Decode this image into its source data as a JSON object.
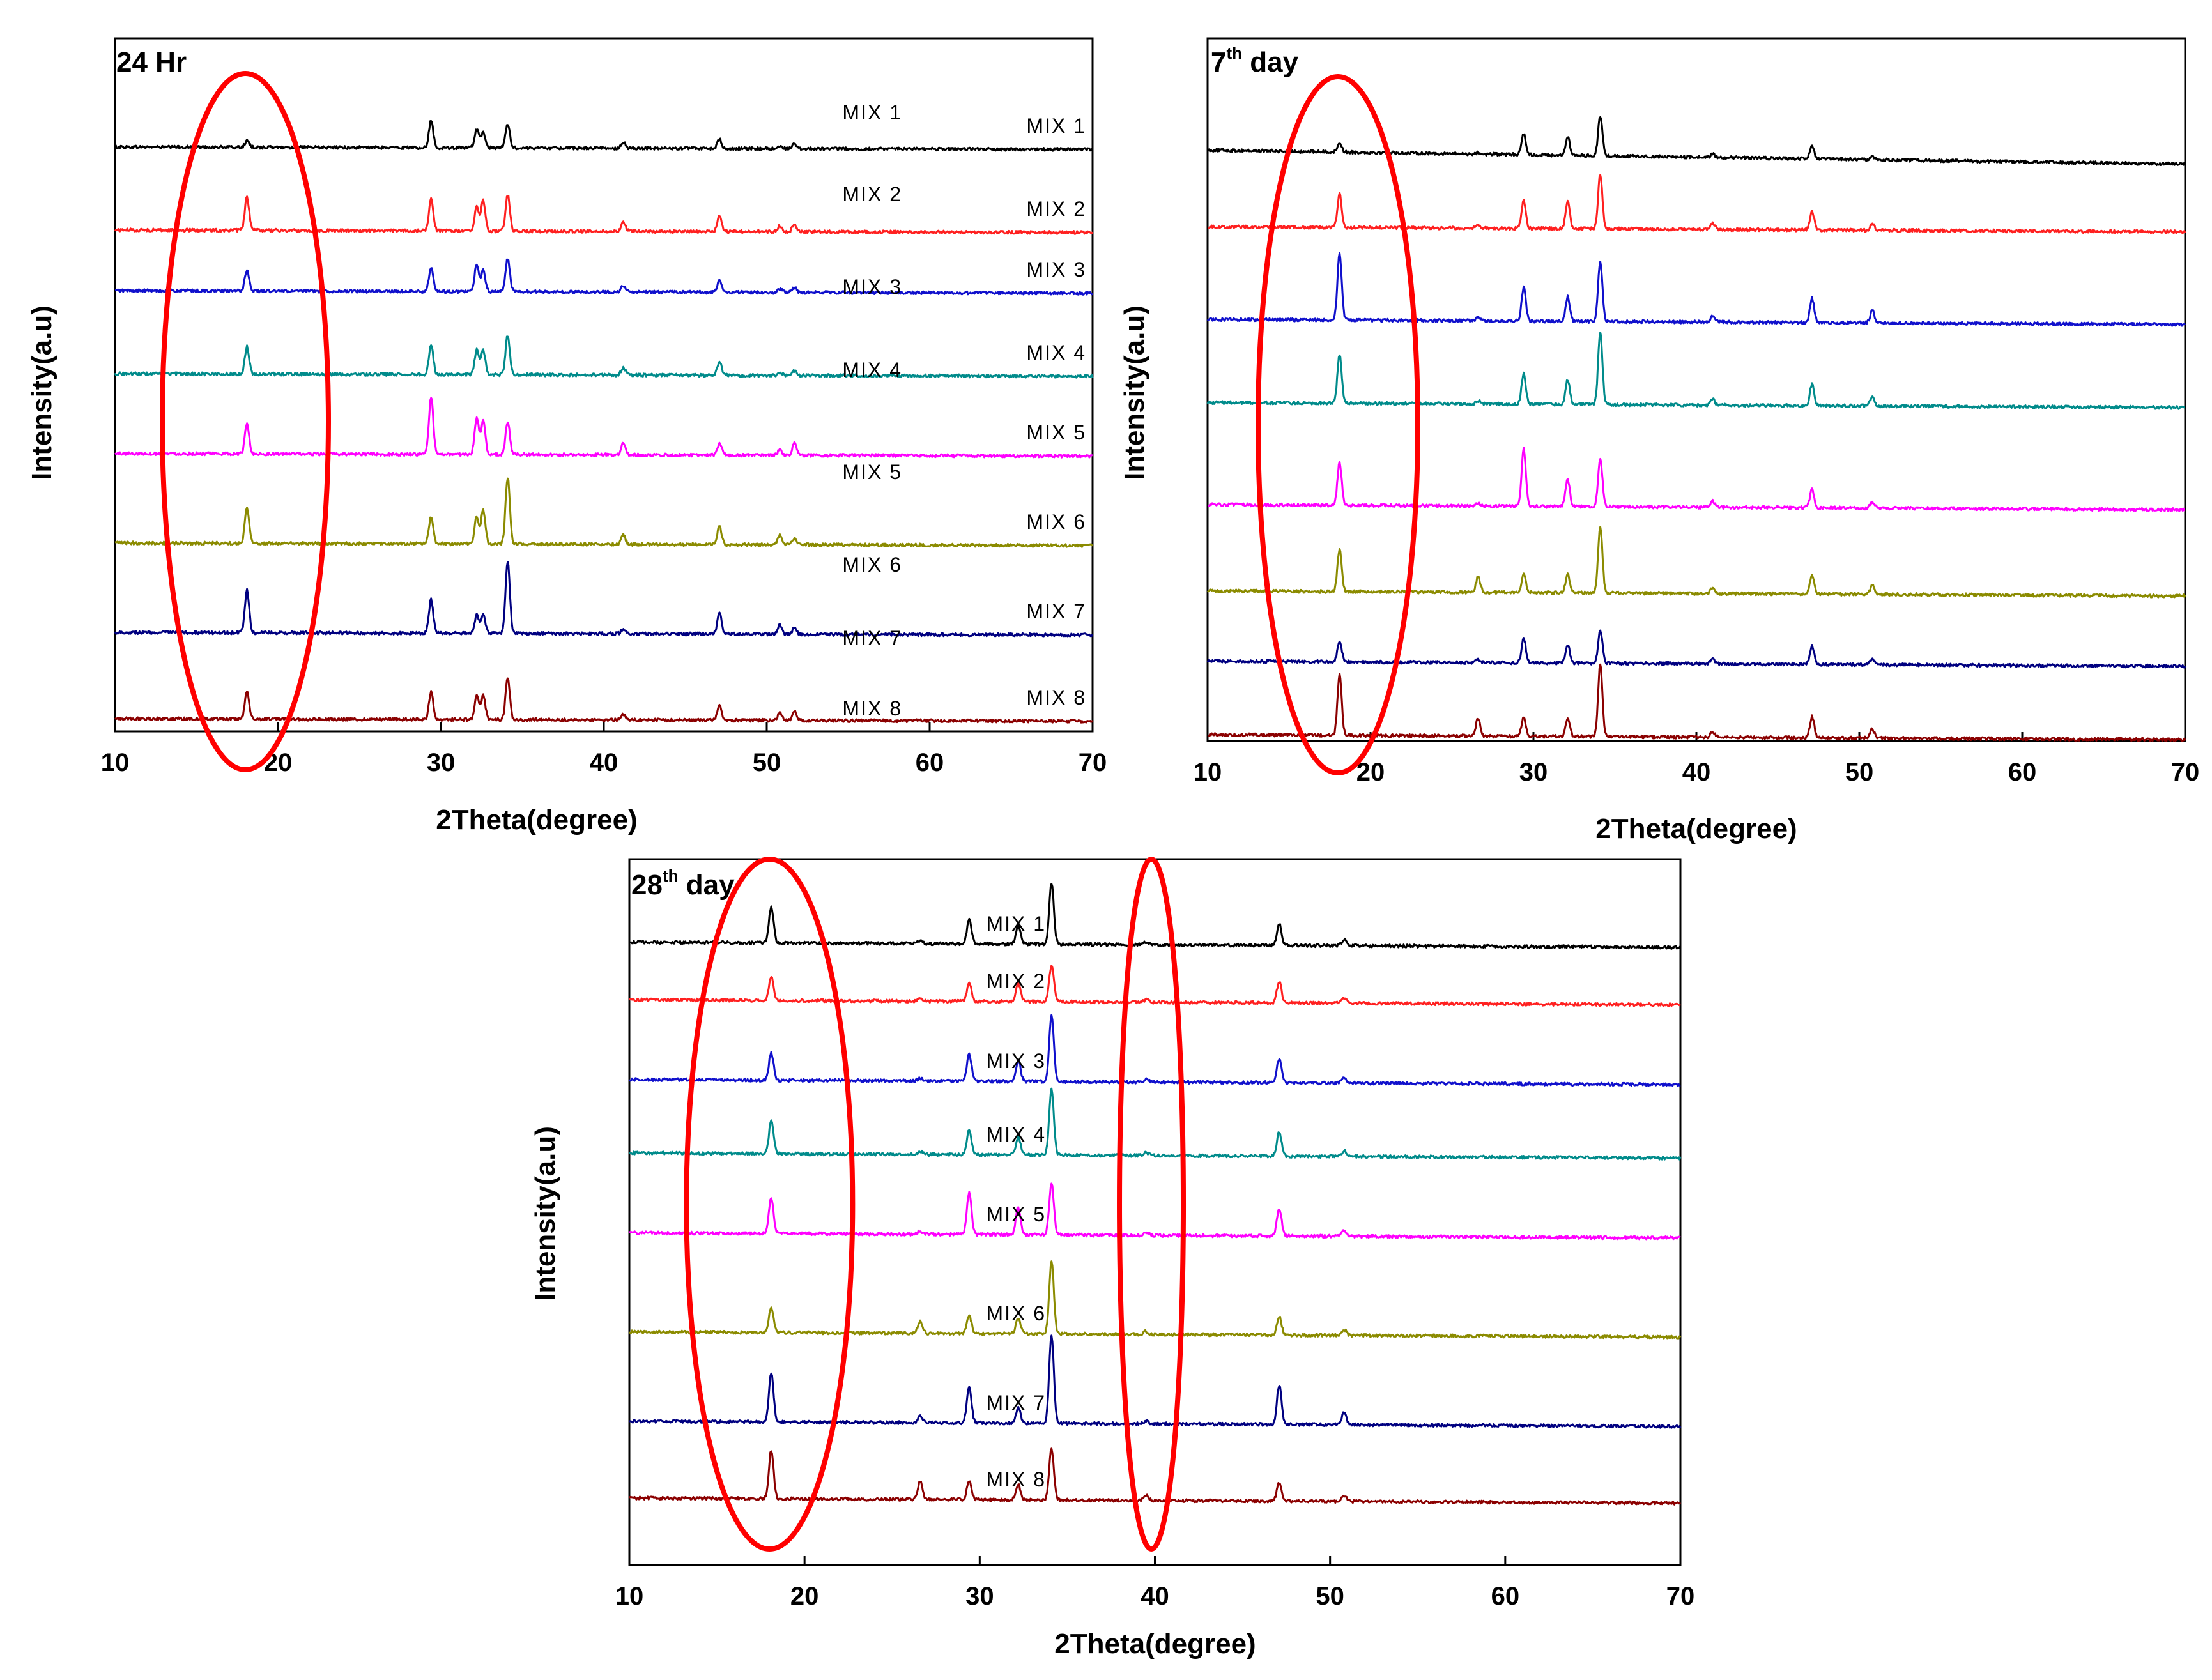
{
  "figure": {
    "colors": {
      "MIX 1": "#000000",
      "MIX 2": "#ff2020",
      "MIX 3": "#1010cc",
      "MIX 4": "#008b8b",
      "MIX 5": "#ff00ff",
      "MIX 6": "#8b8b00",
      "MIX 7": "#000080",
      "MIX 8": "#8b0000",
      "highlight": "#ff0000"
    }
  },
  "chart_data": [
    {
      "type": "line",
      "title": "24 Hr",
      "title_main": "24 Hr",
      "title_sup": "",
      "title_tail": "",
      "xlabel": "2Theta(degree)",
      "ylabel": "Intensity(a.u)",
      "xlim": [
        10,
        70
      ],
      "xticks": [
        10,
        20,
        30,
        40,
        50,
        60,
        70
      ],
      "xtick_labels": [
        "10",
        "20",
        "30",
        "40",
        "50",
        "60",
        "70"
      ],
      "series_names": [
        "MIX 1",
        "MIX 2",
        "MIX 3",
        "MIX 4",
        "MIX 5",
        "MIX 6",
        "MIX 7",
        "MIX 8"
      ],
      "highlight_2theta": [
        18.0
      ],
      "peak_positions_2theta": [
        18.1,
        29.4,
        32.2,
        32.6,
        34.1,
        41.2,
        47.1,
        50.8,
        51.7
      ],
      "relative_peak_heights": [
        [
          0.1,
          0.45,
          0.3,
          0.25,
          0.4,
          0.1,
          0.15,
          0.05,
          0.08
        ],
        [
          0.55,
          0.55,
          0.4,
          0.5,
          0.6,
          0.15,
          0.25,
          0.1,
          0.12
        ],
        [
          0.35,
          0.4,
          0.45,
          0.35,
          0.55,
          0.1,
          0.2,
          0.06,
          0.08
        ],
        [
          0.45,
          0.5,
          0.4,
          0.4,
          0.65,
          0.12,
          0.22,
          0.06,
          0.08
        ],
        [
          0.5,
          0.95,
          0.6,
          0.55,
          0.55,
          0.2,
          0.2,
          0.08,
          0.2
        ],
        [
          0.6,
          0.45,
          0.45,
          0.55,
          1.1,
          0.15,
          0.3,
          0.15,
          0.1
        ],
        [
          0.7,
          0.55,
          0.3,
          0.3,
          1.2,
          0.08,
          0.35,
          0.15,
          0.1
        ],
        [
          0.45,
          0.45,
          0.4,
          0.4,
          0.7,
          0.1,
          0.25,
          0.12,
          0.15
        ]
      ]
    },
    {
      "type": "line",
      "title": "7th day",
      "title_main": "7",
      "title_sup": "th",
      "title_tail": " day",
      "xlabel": "2Theta(degree)",
      "ylabel": "Intensity(a.u)",
      "xlim": [
        10,
        70
      ],
      "xticks": [
        10,
        20,
        30,
        40,
        50,
        60,
        70
      ],
      "xtick_labels": [
        "10",
        "20",
        "30",
        "40",
        "50",
        "60",
        "70"
      ],
      "series_names": [
        "MIX 1",
        "MIX 2",
        "MIX 3",
        "MIX 4",
        "MIX 5",
        "MIX 6",
        "MIX 7",
        "MIX 8"
      ],
      "highlight_2theta": [
        18.0
      ],
      "peak_positions_2theta": [
        18.1,
        26.6,
        29.4,
        32.1,
        34.1,
        41.0,
        47.1,
        50.8
      ],
      "relative_peak_heights": [
        [
          0.15,
          0.02,
          0.35,
          0.3,
          0.65,
          0.05,
          0.2,
          0.05
        ],
        [
          0.55,
          0.05,
          0.45,
          0.45,
          0.9,
          0.1,
          0.3,
          0.1
        ],
        [
          1.1,
          0.05,
          0.55,
          0.4,
          1.0,
          0.1,
          0.4,
          0.2
        ],
        [
          0.8,
          0.05,
          0.5,
          0.4,
          1.2,
          0.1,
          0.35,
          0.15
        ],
        [
          0.7,
          0.05,
          0.95,
          0.45,
          0.8,
          0.1,
          0.3,
          0.1
        ],
        [
          0.7,
          0.25,
          0.3,
          0.3,
          1.1,
          0.1,
          0.3,
          0.15
        ],
        [
          0.35,
          0.05,
          0.4,
          0.3,
          0.55,
          0.08,
          0.3,
          0.1
        ],
        [
          1.0,
          0.3,
          0.3,
          0.3,
          1.2,
          0.1,
          0.35,
          0.15
        ]
      ]
    },
    {
      "type": "line",
      "title": "28th day",
      "title_main": "28",
      "title_sup": "th",
      "title_tail": " day",
      "xlabel": "2Theta(degree)",
      "ylabel": "Intensity(a.u)",
      "xlim": [
        10,
        70
      ],
      "xticks": [
        10,
        20,
        30,
        40,
        50,
        60,
        70
      ],
      "xtick_labels": [
        "10",
        "20",
        "30",
        "40",
        "50",
        "60",
        "70"
      ],
      "series_names": [
        "MIX 1",
        "MIX 2",
        "MIX 3",
        "MIX 4",
        "MIX 5",
        "MIX 6",
        "MIX 7",
        "MIX 8"
      ],
      "highlight_2theta": [
        18.0,
        39.8
      ],
      "peak_positions_2theta": [
        18.1,
        26.6,
        29.4,
        32.2,
        34.1,
        39.5,
        47.1,
        50.8
      ],
      "relative_peak_heights": [
        [
          0.6,
          0.05,
          0.4,
          0.3,
          1.0,
          0.05,
          0.35,
          0.1
        ],
        [
          0.4,
          0.03,
          0.3,
          0.3,
          0.6,
          0.04,
          0.35,
          0.08
        ],
        [
          0.45,
          0.05,
          0.45,
          0.35,
          1.1,
          0.05,
          0.4,
          0.1
        ],
        [
          0.55,
          0.05,
          0.4,
          0.3,
          1.1,
          0.05,
          0.4,
          0.1
        ],
        [
          0.6,
          0.05,
          0.7,
          0.45,
          0.85,
          0.05,
          0.45,
          0.1
        ],
        [
          0.4,
          0.2,
          0.3,
          0.25,
          1.2,
          0.05,
          0.3,
          0.1
        ],
        [
          0.8,
          0.1,
          0.6,
          0.25,
          1.45,
          0.05,
          0.65,
          0.2
        ],
        [
          0.8,
          0.3,
          0.3,
          0.25,
          0.85,
          0.1,
          0.3,
          0.1
        ]
      ]
    }
  ]
}
